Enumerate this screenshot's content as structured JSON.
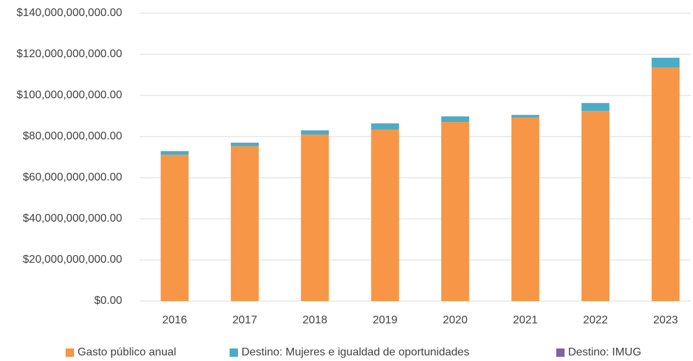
{
  "chart_data": {
    "type": "stacked_bar",
    "categories": [
      "2016",
      "2017",
      "2018",
      "2019",
      "2020",
      "2021",
      "2022",
      "2023"
    ],
    "series": [
      {
        "name": "Gasto público anual",
        "color": "#f79646",
        "values": [
          71200000000,
          75300000000,
          81000000000,
          83400000000,
          87100000000,
          89200000000,
          92500000000,
          113600000000
        ]
      },
      {
        "name": "Destino: Mujeres e igualdad de oportunidades",
        "color": "#4bacc6",
        "values": [
          1700000000,
          1700000000,
          2000000000,
          3000000000,
          2700000000,
          1300000000,
          3800000000,
          4700000000
        ]
      },
      {
        "name": "Destino: IMUG",
        "color": "#8064a2",
        "values": [
          50000000,
          50000000,
          50000000,
          50000000,
          50000000,
          50000000,
          50000000,
          50000000
        ]
      }
    ],
    "ylim": [
      0,
      140000000000
    ],
    "yticks": [
      {
        "value": 0,
        "label": "$0.00"
      },
      {
        "value": 20000000000,
        "label": "$20,000,000,000.00"
      },
      {
        "value": 40000000000,
        "label": "$40,000,000,000.00"
      },
      {
        "value": 60000000000,
        "label": "$60,000,000,000.00"
      },
      {
        "value": 80000000000,
        "label": "$80,000,000,000.00"
      },
      {
        "value": 100000000000,
        "label": "$100,000,000,000.00"
      },
      {
        "value": 120000000000,
        "label": "$120,000,000,000.00"
      },
      {
        "value": 140000000000,
        "label": "$140,000,000,000.00"
      }
    ],
    "grid": true,
    "legend": "bottom"
  }
}
